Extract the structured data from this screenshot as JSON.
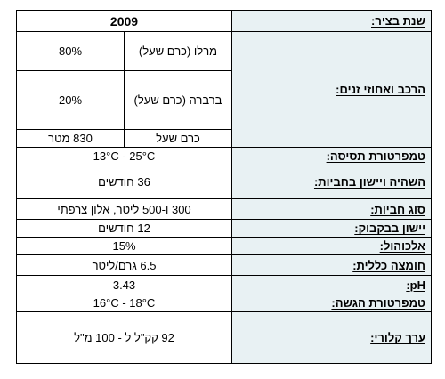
{
  "rows": {
    "year": {
      "label": "שנת בציר:",
      "value": "2009"
    },
    "composition": {
      "label": "הרכב ואחוזי זנים:",
      "varieties": [
        {
          "name": "מרלו (כרם שעל)",
          "pct": "80%"
        },
        {
          "name": "ברברה (כרם שעל)",
          "pct": "20%"
        }
      ],
      "vineyard": {
        "name": "כרם שעל",
        "altitude": "830 מטר"
      }
    },
    "fermentation_temp": {
      "label": "טמפרטורת תסיסה:",
      "value": "13°C - 25°C"
    },
    "barrel_aging": {
      "label": "השהיה ויישון בחביות:",
      "value": "36 חודשים"
    },
    "barrel_type": {
      "label": "סוג חביות:",
      "value": "300 ו-500 ליטר, אלון צרפתי"
    },
    "bottle_aging": {
      "label": "יישון בבקבוק:",
      "value": "12 חודשים"
    },
    "alcohol": {
      "label": "אלכוהול:",
      "value": "15%"
    },
    "acidity": {
      "label": "חומצה כללית:",
      "value": "6.5 גרם/ליטר"
    },
    "ph": {
      "label": "pH:",
      "value": "3.43"
    },
    "serving_temp": {
      "label": "טמפרטורת הגשה:",
      "value": "16°C - 18°C"
    },
    "calories": {
      "label": "ערך קלורי:",
      "value": "92 קק\"ל ל - 100 מ\"ל"
    }
  }
}
